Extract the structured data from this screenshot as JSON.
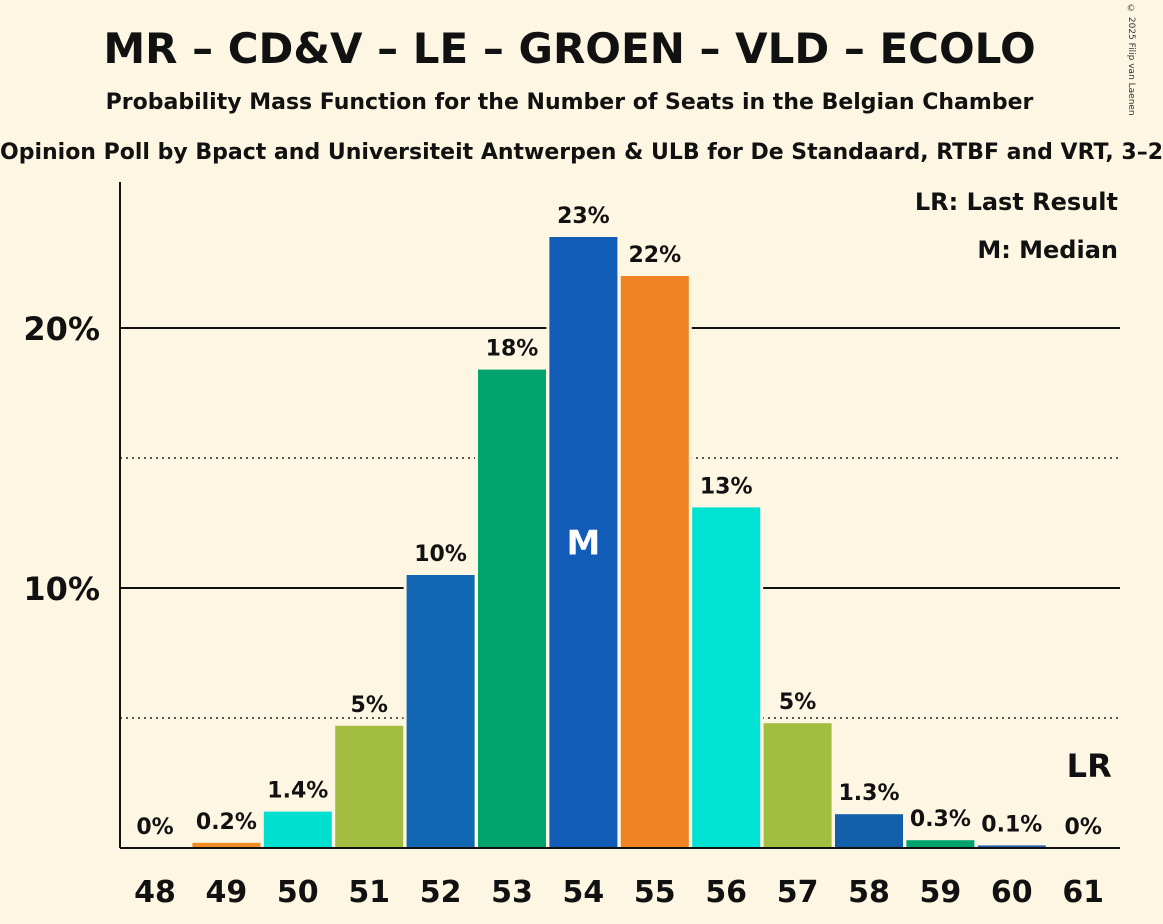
{
  "title": "MR – CD&V – LE – GROEN – VLD – ECOLO",
  "subtitle": "Probability Mass Function for the Number of Seats in the Belgian Chamber",
  "source": "Opinion Poll by Bpact and Universiteit Antwerpen & ULB for De Standaard, RTBF and VRT, 3–2",
  "copyright": "© 2025 Filip van Laenen",
  "chart_data": {
    "type": "bar",
    "categories": [
      "48",
      "49",
      "50",
      "51",
      "52",
      "53",
      "54",
      "55",
      "56",
      "57",
      "58",
      "59",
      "60",
      "61"
    ],
    "values": [
      0,
      0.2,
      1.4,
      4.7,
      10.5,
      18.4,
      23.5,
      22.0,
      13.1,
      4.8,
      1.3,
      0.3,
      0.1,
      0
    ],
    "labels": [
      "0%",
      "0.2%",
      "1.4%",
      "5%",
      "10%",
      "18%",
      "23%",
      "22%",
      "13%",
      "5%",
      "1.3%",
      "0.3%",
      "0.1%",
      "0%"
    ],
    "colors": [
      "#1f5fb4",
      "#f08a24",
      "#00e0d0",
      "#a2bd40",
      "#1167b1",
      "#00a36c",
      "#115cb7",
      "#f08324",
      "#00e2d2",
      "#a2bd40",
      "#1160a9",
      "#00a36c",
      "#1f5fb4",
      "#1f5fb4"
    ],
    "ylim": [
      0,
      25
    ],
    "yticks": [
      {
        "value": 10,
        "label": "10%"
      },
      {
        "value": 20,
        "label": "20%"
      }
    ],
    "minor_gridlines": [
      5,
      15
    ],
    "median_category": "54",
    "median_mark": "M",
    "last_result_category": "61",
    "last_result_mark": "LR",
    "legend": [
      "LR: Last Result",
      "M: Median"
    ],
    "legend_position": "top-right",
    "grid": true
  }
}
